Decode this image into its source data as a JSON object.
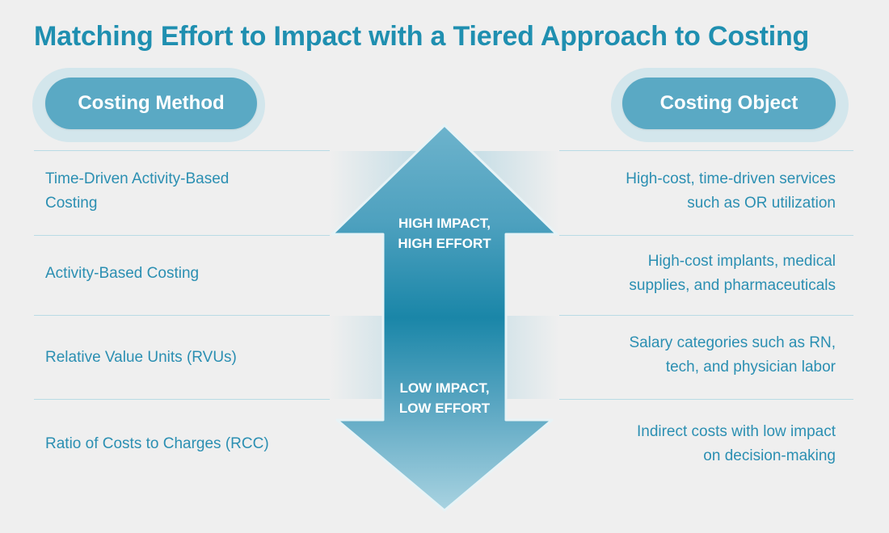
{
  "title": "Matching Effort to Impact with a Tiered Approach to Costing",
  "headers": {
    "left": "Costing Method",
    "right": "Costing Object"
  },
  "arrow": {
    "top_label_line1": "HIGH IMPACT,",
    "top_label_line2": "HIGH EFFORT",
    "bottom_label_line1": "LOW IMPACT,",
    "bottom_label_line2": "LOW EFFORT"
  },
  "rows": [
    {
      "method_line1": "Time-Driven Activity-Based",
      "method_line2": "Costing",
      "object_line1": "High-cost, time-driven services",
      "object_line2": "such as OR utilization"
    },
    {
      "method_line1": "Activity-Based Costing",
      "object_line1": "High-cost implants, medical",
      "object_line2": "supplies, and pharmaceuticals"
    },
    {
      "method_line1": "Relative Value Units (RVUs)",
      "object_line1": "Salary categories such as RN,",
      "object_line2": "tech, and physician labor"
    },
    {
      "method_line1": "Ratio of Costs to Charges (RCC)",
      "object_line1": "Indirect costs with low impact",
      "object_line2": "on decision-making"
    }
  ],
  "colors": {
    "accent": "#1f8fb0",
    "pill": "#5aa9c4",
    "arrow_top": "#5fabc6",
    "arrow_mid": "#1a86a8",
    "arrow_bottom": "#9ccbdb"
  }
}
